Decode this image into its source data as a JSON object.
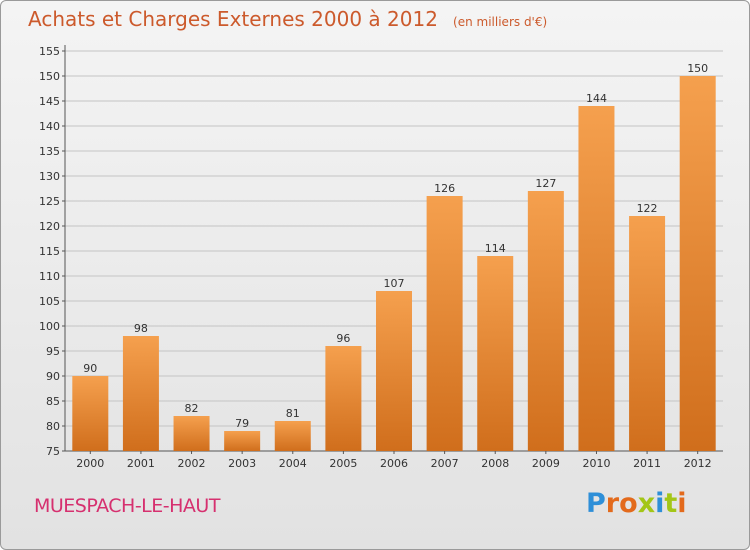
{
  "header": {
    "title": "Achats et Charges Externes 2000 à 2012",
    "unit": "(en milliers d'€)"
  },
  "footer": {
    "town": "MUESPACH-LE-HAUT",
    "brand": "Proxiti"
  },
  "colors": {
    "bar_top": "#f5a04e",
    "bar_bottom": "#d06e1c",
    "title": "#cc5a2c",
    "town": "#d6306f",
    "brand_letters": [
      "#2e8fd8",
      "#e36a1c",
      "#e36a1c",
      "#a3c617",
      "#2e8fd8",
      "#a3c617",
      "#e36a1c"
    ]
  },
  "chart_data": {
    "type": "bar",
    "title": "Achats et Charges Externes 2000 à 2012",
    "subtitle": "(en milliers d'€)",
    "categories": [
      "2000",
      "2001",
      "2002",
      "2003",
      "2004",
      "2005",
      "2006",
      "2007",
      "2008",
      "2009",
      "2010",
      "2011",
      "2012"
    ],
    "values": [
      90,
      98,
      82,
      79,
      81,
      96,
      107,
      126,
      114,
      127,
      144,
      122,
      150
    ],
    "ylim": [
      75,
      155
    ],
    "yticks": [
      75,
      80,
      85,
      90,
      95,
      100,
      105,
      110,
      115,
      120,
      125,
      130,
      135,
      140,
      145,
      150,
      155
    ],
    "grid": true,
    "data_labels": true
  }
}
